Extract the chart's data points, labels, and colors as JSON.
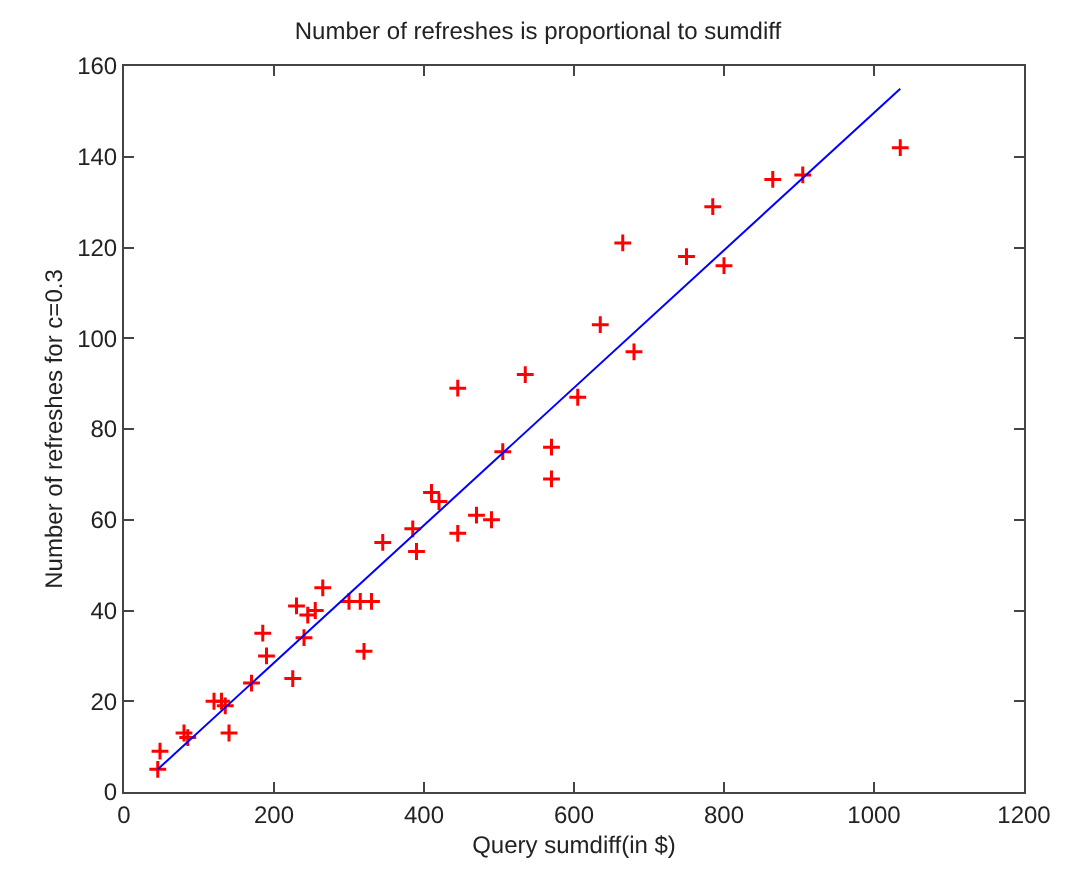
{
  "chart_data": {
    "type": "scatter",
    "title": "Number of refreshes is proportional to sumdiff",
    "xlabel": "Query sumdiff(in $)",
    "ylabel": "Number of refreshes for c=0.3",
    "xlim": [
      0,
      1200
    ],
    "xticks": [
      0,
      200,
      400,
      600,
      800,
      1000,
      1200
    ],
    "ylim": [
      0,
      160
    ],
    "yticks": [
      0,
      20,
      40,
      60,
      80,
      100,
      120,
      140,
      160
    ],
    "series": [
      {
        "marker": "cross",
        "color": "#ff0000",
        "x": [
          45,
          48,
          80,
          85,
          120,
          130,
          135,
          140,
          170,
          185,
          190,
          225,
          230,
          240,
          245,
          255,
          265,
          300,
          315,
          320,
          330,
          345,
          385,
          390,
          410,
          420,
          445,
          445,
          470,
          490,
          505,
          535,
          570,
          570,
          605,
          635,
          665,
          680,
          750,
          785,
          800,
          865,
          905,
          1035
        ],
        "values": [
          5,
          9,
          13,
          12,
          20,
          20,
          19,
          13,
          24,
          35,
          30,
          25,
          41,
          34,
          39,
          40,
          45,
          42,
          42,
          31,
          42,
          55,
          58,
          53,
          66,
          64,
          57,
          89,
          61,
          60,
          75,
          92,
          76,
          69,
          87,
          103,
          121,
          97,
          118,
          129,
          116,
          135,
          136,
          142
        ]
      },
      {
        "type": "line",
        "color": "#0000ff",
        "line_style": "solid",
        "x": [
          45,
          1035
        ],
        "values": [
          5,
          155
        ]
      }
    ]
  }
}
